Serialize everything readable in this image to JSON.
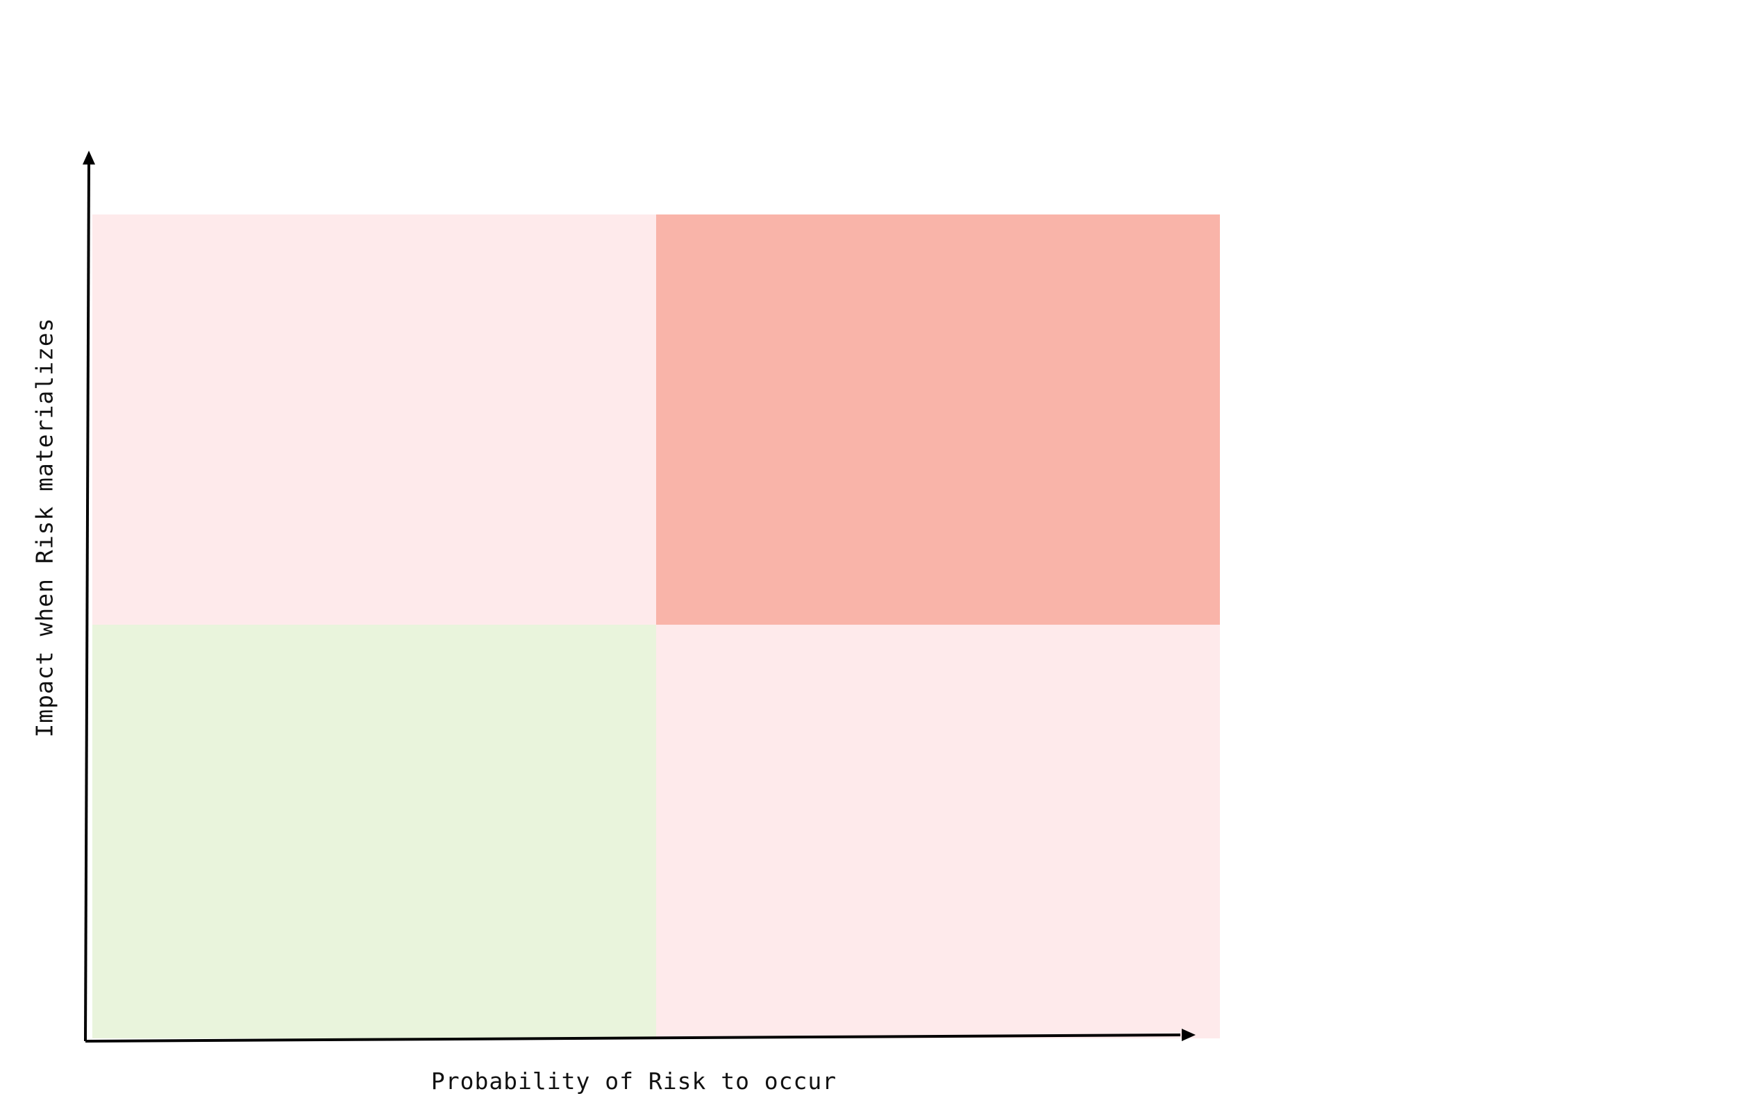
{
  "diagram": {
    "x_axis_label": "Probability of Risk to occur",
    "y_axis_label": "Impact when Risk materializes",
    "quadrants": {
      "top_left": {
        "color": "#FEEAEB"
      },
      "top_right": {
        "color": "#F9B4A9"
      },
      "bottom_left": {
        "color": "#E9F4DC"
      },
      "bottom_right": {
        "color": "#FEEAEB"
      }
    },
    "axis_color": "#000000"
  }
}
